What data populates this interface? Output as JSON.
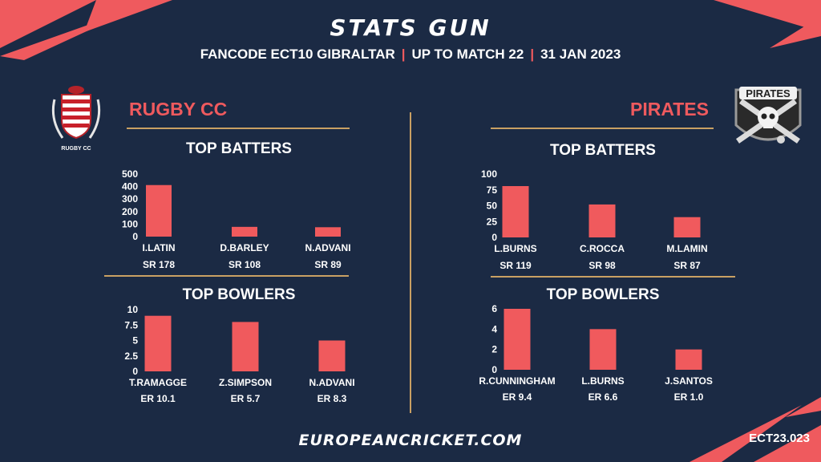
{
  "header": {
    "title": "STATS GUN",
    "subtitle_parts": [
      "FANCODE ECT10 GIBRALTAR",
      "UP TO MATCH 22",
      "31 JAN 2023"
    ]
  },
  "teams": {
    "left": {
      "name": "RUGBY CC",
      "logo_text": "RUGBY CC"
    },
    "right": {
      "name": "PIRATES",
      "logo_text": "PIRATES"
    }
  },
  "sections": {
    "batters": "TOP BATTERS",
    "bowlers": "TOP BOWLERS"
  },
  "footer": {
    "site": "EUROPEANCRICKET.COM",
    "code": "ECT23.023"
  },
  "colors": {
    "bar": "#f05a5d",
    "accent": "#ef5a5e",
    "gold": "#c9a063",
    "background": "#1b2a44"
  },
  "chart_data": [
    {
      "type": "bar",
      "title": "TOP BATTERS",
      "categories": [
        "I.LATIN",
        "D.BARLEY",
        "N.ADVANI"
      ],
      "values": [
        412,
        78,
        75
      ],
      "sublabels": [
        "SR 178",
        "SR 108",
        "SR 89"
      ],
      "yticks": [
        "500",
        "400",
        "300",
        "200",
        "100",
        "0"
      ],
      "ylim": [
        0,
        500
      ]
    },
    {
      "type": "bar",
      "title": "TOP BOWLERS",
      "categories": [
        "T.RAMAGGE",
        "Z.SIMPSON",
        "N.ADVANI"
      ],
      "values": [
        9,
        8,
        5
      ],
      "sublabels": [
        "ER 10.1",
        "ER 5.7",
        "ER 8.3"
      ],
      "yticks": [
        "10",
        "7.5",
        "5",
        "2.5",
        "0"
      ],
      "ylim": [
        0,
        10
      ]
    },
    {
      "type": "bar",
      "title": "TOP BATTERS",
      "categories": [
        "L.BURNS",
        "C.ROCCA",
        "M.LAMIN"
      ],
      "values": [
        81,
        52,
        32
      ],
      "sublabels": [
        "SR 119",
        "SR 98",
        "SR 87"
      ],
      "yticks": [
        "100",
        "75",
        "50",
        "25",
        "0"
      ],
      "ylim": [
        0,
        100
      ]
    },
    {
      "type": "bar",
      "title": "TOP BOWLERS",
      "categories": [
        "R.CUNNINGHAM",
        "L.BURNS",
        "J.SANTOS"
      ],
      "values": [
        6,
        4,
        2
      ],
      "sublabels": [
        "ER 9.4",
        "ER 6.6",
        "ER 1.0"
      ],
      "yticks": [
        "6",
        "4",
        "2",
        "0"
      ],
      "ylim": [
        0,
        6
      ]
    }
  ]
}
